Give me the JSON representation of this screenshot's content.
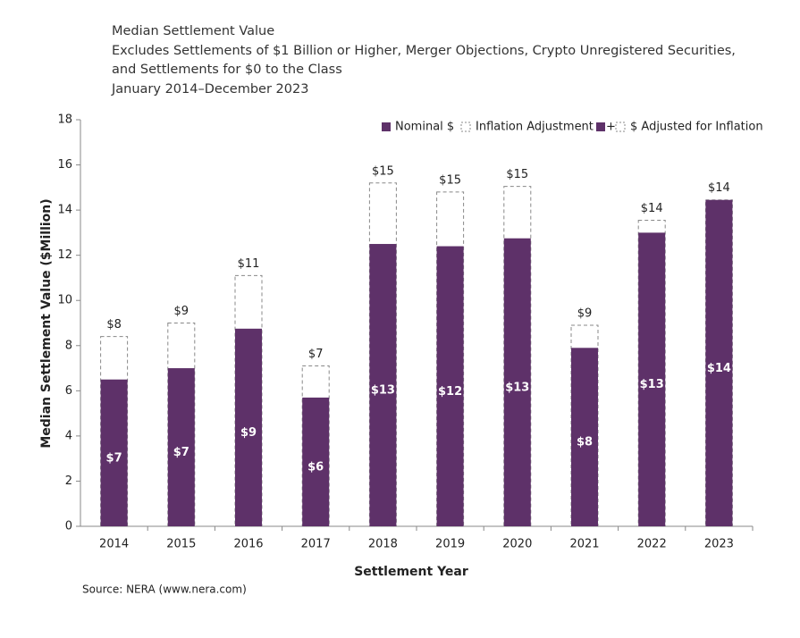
{
  "chart_data": {
    "type": "bar",
    "title": "Median Settlement Value",
    "subtitle_lines": [
      "Excludes Settlements of $1 Billion or Higher, Merger Objections, Crypto Unregistered Securities,",
      "and Settlements for $0 to the Class",
      "January 2014–December 2023"
    ],
    "y_label": "Median Settlement Value ($Million)",
    "x_label": "Settlement Year",
    "source": "Source: NERA (www.nera.com)",
    "categories": [
      "2014",
      "2015",
      "2016",
      "2017",
      "2018",
      "2019",
      "2020",
      "2021",
      "2022",
      "2023"
    ],
    "series": [
      {
        "name": "Nominal $",
        "color": "#5e3169",
        "values": [
          6.5,
          7.0,
          8.75,
          5.7,
          12.5,
          12.4,
          12.75,
          7.9,
          13.0,
          14.45
        ],
        "value_labels": [
          "$7",
          "$7",
          "$9",
          "$6",
          "$13",
          "$12",
          "$13",
          "$8",
          "$13",
          "$14"
        ]
      },
      {
        "name": "$ Adjusted for Inflation",
        "color": "#888888",
        "values": [
          8.4,
          9.0,
          11.1,
          7.1,
          15.2,
          14.8,
          15.05,
          8.9,
          13.55,
          14.45
        ],
        "value_labels": [
          "$8",
          "$9",
          "$11",
          "$7",
          "$15",
          "$15",
          "$15",
          "$9",
          "$14",
          "$14"
        ]
      }
    ],
    "inflation_legend_label": "Inflation Adjustment",
    "legend_plus": "+",
    "ylim": [
      0,
      18
    ],
    "yticks": [
      0,
      2,
      4,
      6,
      8,
      10,
      12,
      14,
      16,
      18
    ],
    "legend_position": "top-right"
  }
}
